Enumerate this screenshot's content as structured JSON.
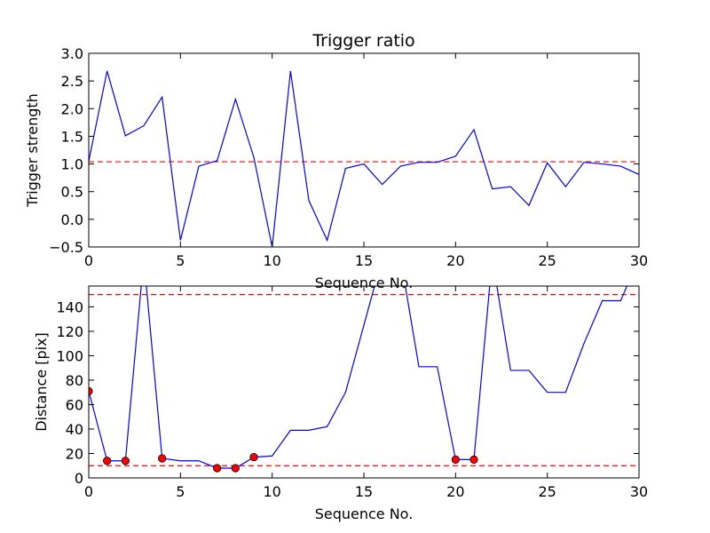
{
  "chart_data": [
    {
      "type": "line",
      "title": "Trigger ratio",
      "xlabel": "Sequence No.",
      "ylabel": "Trigger strength",
      "xlim": [
        0,
        30
      ],
      "ylim": [
        -0.5,
        3.0
      ],
      "xticks": [
        "0",
        "5",
        "10",
        "15",
        "20",
        "25",
        "30"
      ],
      "yticks": [
        "−0.5",
        "0.0",
        "0.5",
        "1.0",
        "1.5",
        "2.0",
        "2.5",
        "3.0"
      ],
      "grid": false,
      "series": [
        {
          "color": "#0000ff",
          "x": [
            0,
            1,
            2,
            3,
            4,
            5,
            6,
            7,
            8,
            9,
            10,
            11,
            12,
            13,
            14,
            15,
            16,
            17,
            18,
            19,
            20,
            21,
            22,
            23,
            24,
            25,
            26,
            27,
            28,
            29,
            30
          ],
          "y": [
            1.05,
            2.68,
            1.51,
            1.69,
            2.21,
            -0.38,
            0.96,
            1.06,
            2.17,
            1.12,
            -0.5,
            2.68,
            0.34,
            -0.38,
            0.92,
            1.0,
            0.63,
            0.96,
            1.03,
            1.03,
            1.14,
            1.62,
            0.55,
            0.59,
            0.25,
            1.02,
            0.59,
            1.03,
            1.0,
            0.96,
            0.81
          ]
        }
      ],
      "hlines": [
        {
          "y": 1.04,
          "color": "#ff0000",
          "style": "dashed"
        }
      ]
    },
    {
      "type": "line",
      "xlabel": "Sequence No.",
      "ylabel": "Distance [pix]",
      "xlim": [
        0,
        30
      ],
      "ylim": [
        0,
        157
      ],
      "xticks": [
        "0",
        "5",
        "10",
        "15",
        "20",
        "25",
        "30"
      ],
      "yticks": [
        "0",
        "20",
        "40",
        "60",
        "80",
        "100",
        "120",
        "140"
      ],
      "grid": false,
      "series": [
        {
          "color": "#0000ff",
          "x": [
            0,
            1,
            2,
            3,
            4,
            5,
            6,
            7,
            8,
            9,
            10,
            11,
            12,
            13,
            14,
            15,
            16,
            17,
            18,
            19,
            20,
            21,
            22,
            23,
            24,
            25,
            26,
            27,
            28,
            29,
            30
          ],
          "y": [
            71,
            14,
            14,
            180,
            16,
            14,
            14,
            8,
            8,
            17,
            18,
            39,
            39,
            42,
            70,
            125,
            180,
            180,
            91,
            91,
            15,
            15,
            180,
            88,
            88,
            70,
            70,
            110,
            145,
            145,
            180
          ]
        }
      ],
      "markers": {
        "color": "#ff0000",
        "x": [
          0,
          1,
          2,
          4,
          7,
          8,
          9,
          20,
          21
        ],
        "y": [
          71,
          14,
          14,
          16,
          8,
          8,
          17,
          15,
          15
        ]
      },
      "hlines": [
        {
          "y": 150,
          "color": "#ff0000",
          "style": "dashed"
        },
        {
          "y": 10,
          "color": "#ff0000",
          "style": "dashed"
        }
      ]
    }
  ]
}
